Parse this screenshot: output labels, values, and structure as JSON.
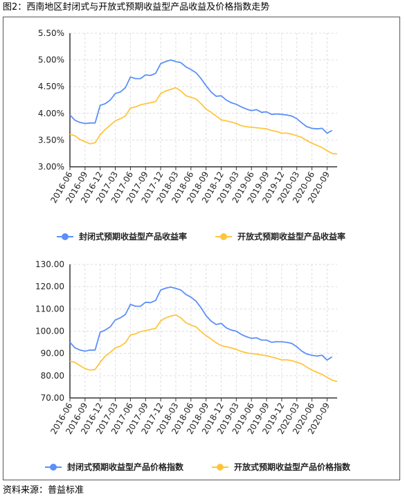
{
  "figure": {
    "title": "图2：西南地区封闭式与开放式预期收益型产品收益及价格指数走势",
    "source": "资料来源：普益标准"
  },
  "colors": {
    "blue": "#5B8FF9",
    "orange": "#FFC53D",
    "grid": "#dcdcdc",
    "axis": "#333333"
  },
  "chart_data": [
    {
      "type": "line",
      "ylim": [
        3.0,
        5.5
      ],
      "yticks": [
        "3.00%",
        "3.50%",
        "4.00%",
        "4.50%",
        "5.00%",
        "5.50%"
      ],
      "x_tick_labels": [
        "2016-06",
        "2016-09",
        "2016-12",
        "2017-03",
        "2017-06",
        "2017-09",
        "2017-12",
        "2018-03",
        "2018-06",
        "2018-09",
        "2018-12",
        "2019-03",
        "2019-06",
        "2019-09",
        "2019-12",
        "2020-03",
        "2020-06",
        "2020-09"
      ],
      "legend_position": "bottom",
      "grid": true,
      "series": [
        {
          "name": "封闭式预期收益型产品收益率",
          "color": "#5B8FF9",
          "values": [
            3.97,
            3.87,
            3.83,
            3.81,
            3.82,
            3.82,
            4.15,
            4.18,
            4.25,
            4.37,
            4.4,
            4.48,
            4.68,
            4.65,
            4.65,
            4.72,
            4.71,
            4.75,
            4.93,
            4.97,
            5.0,
            4.97,
            4.95,
            4.87,
            4.82,
            4.76,
            4.65,
            4.52,
            4.4,
            4.32,
            4.33,
            4.25,
            4.2,
            4.17,
            4.12,
            4.08,
            4.05,
            4.07,
            4.02,
            4.03,
            3.98,
            3.99,
            3.98,
            3.97,
            3.95,
            3.9,
            3.82,
            3.75,
            3.72,
            3.71,
            3.72,
            3.63,
            3.68
          ]
        },
        {
          "name": "开放式预期收益型产品收益率",
          "color": "#FFC53D",
          "values": [
            3.61,
            3.58,
            3.51,
            3.47,
            3.43,
            3.45,
            3.6,
            3.7,
            3.78,
            3.86,
            3.9,
            3.95,
            4.1,
            4.12,
            4.16,
            4.18,
            4.2,
            4.22,
            4.37,
            4.42,
            4.45,
            4.48,
            4.42,
            4.33,
            4.3,
            4.27,
            4.18,
            4.08,
            4.02,
            3.95,
            3.88,
            3.86,
            3.84,
            3.81,
            3.77,
            3.75,
            3.74,
            3.73,
            3.72,
            3.71,
            3.68,
            3.66,
            3.63,
            3.63,
            3.61,
            3.58,
            3.55,
            3.49,
            3.44,
            3.4,
            3.36,
            3.3,
            3.25,
            3.24
          ]
        }
      ]
    },
    {
      "type": "line",
      "ylim": [
        70,
        130
      ],
      "yticks": [
        "70.00",
        "80.00",
        "90.00",
        "100.00",
        "110.00",
        "120.00",
        "130.00"
      ],
      "x_tick_labels": [
        "2016-06",
        "2016-09",
        "2016-12",
        "2017-03",
        "2017-06",
        "2017-09",
        "2017-12",
        "2018-03",
        "2018-06",
        "2018-09",
        "2018-12",
        "2019-03",
        "2019-06",
        "2019-09",
        "2019-12",
        "2020-03",
        "2020-06",
        "2020-09"
      ],
      "legend_position": "bottom",
      "grid": true,
      "series": [
        {
          "name": "封闭式预期收益型产品价格指数",
          "color": "#5B8FF9",
          "values": [
            95.0,
            92.5,
            91.5,
            91.0,
            91.5,
            91.5,
            99.5,
            100.5,
            102.0,
            105.0,
            106.0,
            107.5,
            112.0,
            111.2,
            111.2,
            113.0,
            112.8,
            113.8,
            118.5,
            119.3,
            119.8,
            119.2,
            118.5,
            116.5,
            115.3,
            113.5,
            110.5,
            107.0,
            104.5,
            103.0,
            103.5,
            101.5,
            100.5,
            100.0,
            98.5,
            97.5,
            96.8,
            97.0,
            96.0,
            96.0,
            95.0,
            95.3,
            95.2,
            95.0,
            94.5,
            93.0,
            91.0,
            89.7,
            89.2,
            88.8,
            89.2,
            87.0,
            88.5
          ]
        },
        {
          "name": "开放式预期收益型产品价格指数",
          "color": "#FFC53D",
          "values": [
            86.5,
            86.0,
            84.5,
            83.2,
            82.5,
            82.8,
            86.0,
            88.8,
            90.5,
            92.5,
            93.3,
            94.8,
            98.3,
            98.8,
            99.8,
            100.2,
            100.8,
            101.2,
            104.6,
            106.0,
            106.8,
            107.3,
            106.0,
            103.8,
            102.7,
            102.0,
            99.8,
            98.0,
            96.5,
            94.8,
            93.5,
            93.0,
            92.5,
            91.8,
            90.9,
            90.3,
            89.9,
            89.7,
            89.3,
            89.0,
            88.4,
            87.8,
            87.1,
            87.1,
            86.8,
            86.0,
            85.3,
            83.8,
            82.5,
            81.5,
            80.6,
            79.3,
            78.0,
            77.4
          ]
        }
      ]
    }
  ]
}
